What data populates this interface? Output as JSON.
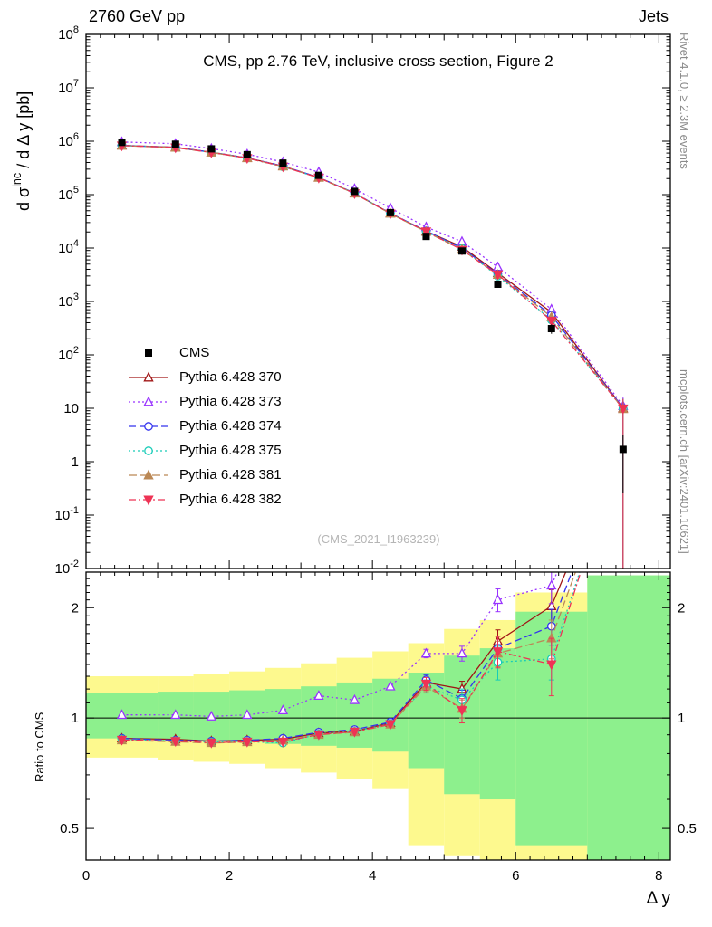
{
  "header": {
    "left": "2760 GeV pp",
    "right": "Jets"
  },
  "main_title": "CMS, pp 2.76 TeV, inclusive cross section, Figure 2",
  "watermark": "(CMS_2021_I1963239)",
  "side_labels": {
    "rivet": "Rivet 4.1.0, ≥ 2.3M events",
    "mcplots": "mcplots.cern.ch [arXiv:2401.10621]"
  },
  "ylabel_main": {
    "pre": "d σ",
    "sup": "inc",
    "post": " / d Δ y [pb]"
  },
  "ylabel_ratio": "Ratio to CMS",
  "xlabel": "Δ y",
  "chart_data": {
    "type": "line",
    "title": "CMS, pp 2.76 TeV, inclusive cross section, Figure 2",
    "xlabel": "Δ y",
    "ylabel_main": "d σ^inc / d Δ y [pb]",
    "ylabel_ratio": "Ratio to CMS",
    "grid": false,
    "legend_position": "left-middle",
    "xlim": [
      0,
      8.16
    ],
    "ylim_main": [
      0.01,
      100000000
    ],
    "ylim_ratio": [
      0.41,
      2.5
    ],
    "xticks": [
      0,
      2,
      4,
      6,
      8
    ],
    "yticks_main_exp": [
      8,
      7,
      6,
      5,
      4,
      3,
      2,
      1,
      0,
      -1,
      -2
    ],
    "yticks_ratio": [
      2,
      1,
      0.5
    ],
    "x": [
      0.5,
      1.25,
      1.75,
      2.25,
      2.75,
      3.25,
      3.75,
      4.25,
      4.75,
      5.25,
      5.75,
      6.5,
      7.5
    ],
    "cms": {
      "label": "CMS",
      "color": "#000000",
      "marker": "square",
      "values": [
        950000,
        880000,
        720000,
        560000,
        390000,
        230000,
        115000,
        46000,
        16500,
        8800,
        2100,
        310,
        1.7
      ],
      "err_rel": [
        0.04,
        0.04,
        0.04,
        0.04,
        0.04,
        0.04,
        0.05,
        0.05,
        0.06,
        0.08,
        0.12,
        0.2,
        0.85
      ]
    },
    "mc": [
      {
        "label": "Pythia 6.428 370",
        "color": "#a01515",
        "dash": "",
        "marker": "triangle-up",
        "filled": false,
        "ratio": [
          0.88,
          0.875,
          0.865,
          0.87,
          0.875,
          0.91,
          0.92,
          0.97,
          1.25,
          1.2,
          1.62,
          2.02,
          5.9
        ],
        "ratio_err": [
          0.01,
          0.01,
          0.01,
          0.01,
          0.01,
          0.015,
          0.015,
          0.02,
          0.04,
          0.06,
          0.12,
          0.22,
          3
        ]
      },
      {
        "label": "Pythia 6.428 373",
        "color": "#9933ff",
        "dash": "2,3",
        "marker": "triangle-up",
        "filled": false,
        "ratio": [
          1.02,
          1.02,
          1.01,
          1.02,
          1.05,
          1.15,
          1.12,
          1.22,
          1.5,
          1.5,
          2.1,
          2.3,
          6.5
        ],
        "ratio_err": [
          0.01,
          0.01,
          0.01,
          0.01,
          0.01,
          0.015,
          0.015,
          0.02,
          0.04,
          0.07,
          0.15,
          0.25,
          3
        ]
      },
      {
        "label": "Pythia 6.428 374",
        "color": "#3333ee",
        "dash": "8,4",
        "marker": "circle",
        "filled": false,
        "ratio": [
          0.88,
          0.87,
          0.865,
          0.87,
          0.88,
          0.915,
          0.93,
          0.975,
          1.27,
          1.13,
          1.55,
          1.78,
          5.9
        ],
        "ratio_err": [
          0.01,
          0.01,
          0.01,
          0.01,
          0.01,
          0.015,
          0.015,
          0.02,
          0.04,
          0.06,
          0.12,
          0.2,
          3
        ]
      },
      {
        "label": "Pythia 6.428 375",
        "color": "#19ccb8",
        "dash": "2,3",
        "marker": "circle",
        "filled": false,
        "ratio": [
          0.875,
          0.865,
          0.86,
          0.862,
          0.855,
          0.905,
          0.92,
          0.965,
          1.22,
          1.12,
          1.42,
          1.45,
          5.8
        ],
        "ratio_err": [
          0.01,
          0.01,
          0.01,
          0.01,
          0.01,
          0.015,
          0.015,
          0.02,
          0.05,
          0.08,
          0.15,
          0.18,
          3
        ]
      },
      {
        "label": "Pythia 6.428 381",
        "color": "#bb8855",
        "dash": "9,4",
        "marker": "triangle-up",
        "filled": true,
        "ratio": [
          0.87,
          0.862,
          0.855,
          0.86,
          0.868,
          0.9,
          0.915,
          0.96,
          1.22,
          1.06,
          1.5,
          1.65,
          5.7
        ],
        "ratio_err": [
          0.01,
          0.01,
          0.01,
          0.01,
          0.01,
          0.015,
          0.015,
          0.02,
          0.04,
          0.06,
          0.12,
          0.2,
          3
        ]
      },
      {
        "label": "Pythia 6.428 382",
        "color": "#ee3355",
        "dash": "8,3,2,3",
        "marker": "triangle-down",
        "filled": true,
        "ratio": [
          0.872,
          0.865,
          0.857,
          0.862,
          0.862,
          0.902,
          0.918,
          0.962,
          1.24,
          1.05,
          1.52,
          1.4,
          5.8
        ],
        "ratio_err": [
          0.01,
          0.01,
          0.01,
          0.01,
          0.01,
          0.015,
          0.015,
          0.02,
          0.05,
          0.08,
          0.15,
          0.25,
          3
        ]
      }
    ],
    "bands": {
      "edges": [
        0,
        1,
        1.5,
        2,
        2.5,
        3,
        3.5,
        4,
        4.5,
        5,
        5.5,
        6,
        7,
        8.16
      ],
      "yellow": {
        "color": "#fdf98e",
        "lo": [
          0.78,
          0.77,
          0.76,
          0.75,
          0.73,
          0.71,
          0.68,
          0.64,
          0.45,
          0.42,
          0.4,
          0.36,
          0.33
        ],
        "hi": [
          1.3,
          1.3,
          1.32,
          1.34,
          1.37,
          1.41,
          1.46,
          1.52,
          1.6,
          1.75,
          1.85,
          2.2,
          2.45
        ]
      },
      "green": {
        "color": "#8df08d",
        "lo": [
          0.88,
          0.87,
          0.87,
          0.86,
          0.85,
          0.84,
          0.83,
          0.81,
          0.73,
          0.62,
          0.6,
          0.45,
          0.36
        ],
        "hi": [
          1.17,
          1.18,
          1.18,
          1.19,
          1.2,
          1.22,
          1.25,
          1.28,
          1.33,
          1.48,
          1.55,
          1.95,
          2.45
        ]
      }
    }
  }
}
